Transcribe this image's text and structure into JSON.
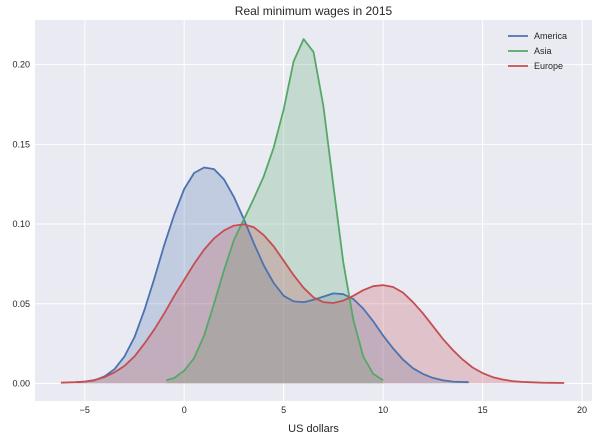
{
  "chart_data": {
    "type": "area",
    "title": "Real minimum wages in 2015",
    "xlabel": "US dollars",
    "ylabel": "",
    "xlim": [
      -7.5,
      20.5
    ],
    "ylim": [
      -0.011,
      0.228
    ],
    "xticks": [
      "−5",
      "0",
      "5",
      "10",
      "15",
      "20"
    ],
    "xtick_values": [
      -5,
      0,
      5,
      10,
      15,
      20
    ],
    "yticks": [
      "0.00",
      "0.05",
      "0.10",
      "0.15",
      "0.20"
    ],
    "ytick_values": [
      0.0,
      0.05,
      0.1,
      0.15,
      0.2
    ],
    "grid": true,
    "legend_position": "top-right",
    "background": "#eaeaf2",
    "series": [
      {
        "name": "America",
        "color": "#4c72b0",
        "fill_opacity": 0.25,
        "x": [
          -5.4,
          -5,
          -4.5,
          -4,
          -3.5,
          -3,
          -2.5,
          -2,
          -1.5,
          -1,
          -0.5,
          0,
          0.5,
          1,
          1.5,
          2,
          2.5,
          3,
          3.5,
          4,
          4.5,
          5,
          5.5,
          6,
          6.5,
          7,
          7.5,
          8,
          8.5,
          9,
          9.5,
          10,
          10.5,
          11,
          11.5,
          12,
          12.5,
          13,
          13.5,
          14,
          14.3
        ],
        "y": [
          0.0008,
          0.0012,
          0.002,
          0.0045,
          0.009,
          0.017,
          0.029,
          0.046,
          0.066,
          0.087,
          0.106,
          0.122,
          0.132,
          0.1355,
          0.1345,
          0.128,
          0.117,
          0.103,
          0.088,
          0.074,
          0.063,
          0.055,
          0.0515,
          0.051,
          0.0525,
          0.0545,
          0.0565,
          0.056,
          0.053,
          0.047,
          0.039,
          0.03,
          0.022,
          0.015,
          0.0095,
          0.006,
          0.0035,
          0.002,
          0.0012,
          0.0009,
          0.0008
        ]
      },
      {
        "name": "Asia",
        "color": "#55a868",
        "fill_opacity": 0.25,
        "x": [
          -0.9,
          -0.5,
          0,
          0.5,
          1,
          1.5,
          2,
          2.5,
          3,
          3.5,
          4,
          4.5,
          5,
          5.5,
          6,
          6.5,
          7,
          7.5,
          8,
          8.5,
          9,
          9.5,
          10
        ],
        "y": [
          0.002,
          0.0035,
          0.008,
          0.016,
          0.03,
          0.05,
          0.071,
          0.09,
          0.103,
          0.116,
          0.13,
          0.148,
          0.172,
          0.202,
          0.216,
          0.208,
          0.174,
          0.124,
          0.076,
          0.04,
          0.017,
          0.006,
          0.002
        ]
      },
      {
        "name": "Europe",
        "color": "#c44e52",
        "fill_opacity": 0.25,
        "x": [
          -6.2,
          -5.5,
          -5,
          -4.5,
          -4,
          -3.5,
          -3,
          -2.5,
          -2,
          -1.5,
          -1,
          -0.5,
          0,
          0.5,
          1,
          1.5,
          2,
          2.5,
          3,
          3.5,
          4,
          4.5,
          5,
          5.5,
          6,
          6.5,
          7,
          7.5,
          8,
          8.5,
          9,
          9.5,
          10,
          10.5,
          11,
          11.5,
          12,
          12.5,
          13,
          13.5,
          14,
          14.5,
          15,
          15.5,
          16,
          16.5,
          17,
          17.5,
          18,
          18.5,
          19.1
        ],
        "y": [
          0.0005,
          0.0008,
          0.0012,
          0.0022,
          0.004,
          0.007,
          0.011,
          0.017,
          0.025,
          0.034,
          0.044,
          0.055,
          0.065,
          0.075,
          0.084,
          0.091,
          0.096,
          0.099,
          0.0998,
          0.098,
          0.093,
          0.086,
          0.077,
          0.068,
          0.06,
          0.054,
          0.051,
          0.0505,
          0.052,
          0.055,
          0.0585,
          0.061,
          0.0617,
          0.0605,
          0.057,
          0.051,
          0.044,
          0.036,
          0.028,
          0.021,
          0.015,
          0.01,
          0.0065,
          0.004,
          0.0025,
          0.0015,
          0.001,
          0.0007,
          0.0005,
          0.0004,
          0.0003
        ]
      }
    ]
  }
}
